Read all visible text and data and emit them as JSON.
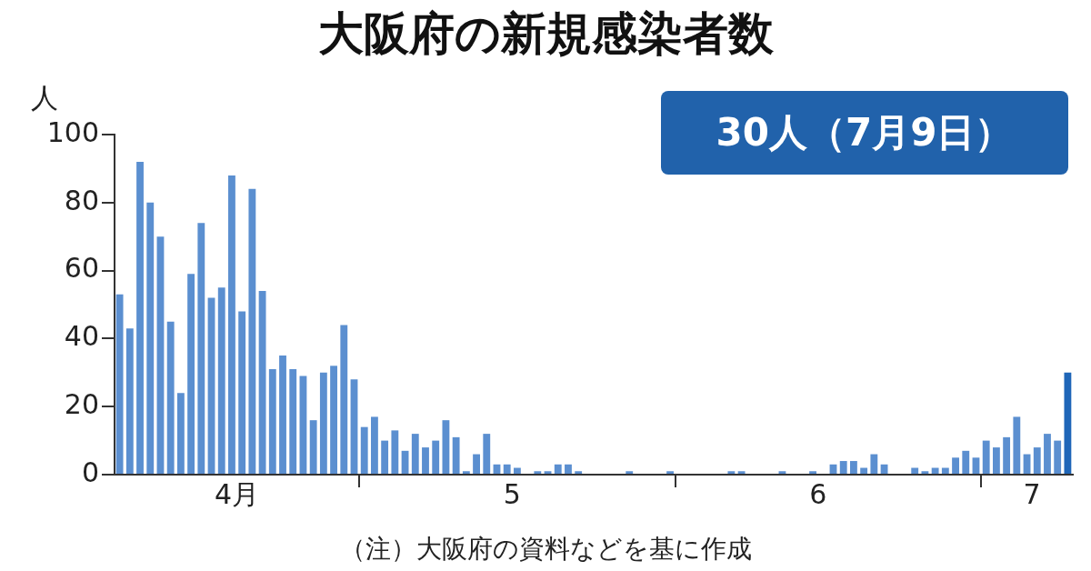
{
  "chart_data": {
    "type": "bar",
    "title": "大阪府の新規感染者数",
    "ylabel": "人",
    "annotations": [
      "30人（7月9日）",
      "（注）大阪府の資料などを基に作成"
    ],
    "x": [
      "--04-07",
      "--04-08",
      "--04-09",
      "--04-10",
      "--04-11",
      "--04-12",
      "--04-13",
      "--04-14",
      "--04-15",
      "--04-16",
      "--04-17",
      "--04-18",
      "--04-19",
      "--04-20",
      "--04-21",
      "--04-22",
      "--04-23",
      "--04-24",
      "--04-25",
      "--04-26",
      "--04-27",
      "--04-28",
      "--04-29",
      "--04-30",
      "--05-01",
      "--05-02",
      "--05-03",
      "--05-04",
      "--05-05",
      "--05-06",
      "--05-07",
      "--05-08",
      "--05-09",
      "--05-10",
      "--05-11",
      "--05-12",
      "--05-13",
      "--05-14",
      "--05-15",
      "--05-16",
      "--05-17",
      "--05-18",
      "--05-19",
      "--05-20",
      "--05-21",
      "--05-22",
      "--05-23",
      "--05-24",
      "--05-25",
      "--05-26",
      "--05-27",
      "--05-28",
      "--05-29",
      "--05-30",
      "--05-31",
      "--06-01",
      "--06-02",
      "--06-03",
      "--06-04",
      "--06-05",
      "--06-06",
      "--06-07",
      "--06-08",
      "--06-09",
      "--06-10",
      "--06-11",
      "--06-12",
      "--06-13",
      "--06-14",
      "--06-15",
      "--06-16",
      "--06-17",
      "--06-18",
      "--06-19",
      "--06-20",
      "--06-21",
      "--06-22",
      "--06-23",
      "--06-24",
      "--06-25",
      "--06-26",
      "--06-27",
      "--06-28",
      "--06-29",
      "--06-30",
      "--07-01",
      "--07-02",
      "--07-03",
      "--07-04",
      "--07-05",
      "--07-06",
      "--07-07",
      "--07-08",
      "--07-09"
    ],
    "values": [
      53,
      43,
      92,
      80,
      70,
      45,
      24,
      59,
      74,
      52,
      55,
      88,
      48,
      84,
      54,
      31,
      35,
      31,
      29,
      16,
      30,
      32,
      44,
      28,
      14,
      17,
      10,
      13,
      7,
      12,
      8,
      10,
      16,
      11,
      1,
      6,
      12,
      3,
      3,
      2,
      0,
      1,
      1,
      3,
      3,
      1,
      0,
      0,
      0,
      0,
      1,
      0,
      0,
      0,
      1,
      0,
      0,
      0,
      0,
      0,
      1,
      1,
      0,
      0,
      0,
      1,
      0,
      0,
      1,
      0,
      3,
      4,
      4,
      2,
      6,
      3,
      0,
      0,
      2,
      1,
      2,
      2,
      5,
      7,
      5,
      10,
      8,
      11,
      17,
      6,
      8,
      12,
      10,
      30
    ],
    "colors": [
      "#5b8fd0",
      "#5b8fd0",
      "#5b8fd0",
      "#5b8fd0",
      "#5b8fd0",
      "#5b8fd0",
      "#5b8fd0",
      "#5b8fd0",
      "#5b8fd0",
      "#5b8fd0",
      "#5b8fd0",
      "#5b8fd0",
      "#5b8fd0",
      "#5b8fd0",
      "#5b8fd0",
      "#5b8fd0",
      "#5b8fd0",
      "#5b8fd0",
      "#5b8fd0",
      "#5b8fd0",
      "#5b8fd0",
      "#5b8fd0",
      "#5b8fd0",
      "#5b8fd0",
      "#5b8fd0",
      "#5b8fd0",
      "#5b8fd0",
      "#5b8fd0",
      "#5b8fd0",
      "#5b8fd0",
      "#5b8fd0",
      "#5b8fd0",
      "#5b8fd0",
      "#5b8fd0",
      "#5b8fd0",
      "#5b8fd0",
      "#5b8fd0",
      "#5b8fd0",
      "#5b8fd0",
      "#5b8fd0",
      "#5b8fd0",
      "#5b8fd0",
      "#5b8fd0",
      "#5b8fd0",
      "#5b8fd0",
      "#5b8fd0",
      "#5b8fd0",
      "#5b8fd0",
      "#5b8fd0",
      "#5b8fd0",
      "#5b8fd0",
      "#5b8fd0",
      "#5b8fd0",
      "#5b8fd0",
      "#5b8fd0",
      "#5b8fd0",
      "#5b8fd0",
      "#5b8fd0",
      "#5b8fd0",
      "#5b8fd0",
      "#5b8fd0",
      "#5b8fd0",
      "#5b8fd0",
      "#5b8fd0",
      "#5b8fd0",
      "#5b8fd0",
      "#5b8fd0",
      "#5b8fd0",
      "#5b8fd0",
      "#5b8fd0",
      "#5b8fd0",
      "#5b8fd0",
      "#5b8fd0",
      "#5b8fd0",
      "#5b8fd0",
      "#5b8fd0",
      "#5b8fd0",
      "#5b8fd0",
      "#5b8fd0",
      "#5b8fd0",
      "#5b8fd0",
      "#5b8fd0",
      "#5b8fd0",
      "#5b8fd0",
      "#5b8fd0",
      "#5b8fd0",
      "#5b8fd0",
      "#5b8fd0",
      "#5b8fd0",
      "#5b8fd0",
      "#5b8fd0",
      "#5b8fd0",
      "#5b8fd0",
      "#1f66b8"
    ],
    "xlim": [
      "--04-07",
      "--07-10"
    ],
    "xticks": [
      {
        "value": "--04-19",
        "label": "4月"
      },
      {
        "value": "--05-01",
        "label": null
      },
      {
        "value": "--05-16",
        "label": "5"
      },
      {
        "value": "--06-01",
        "label": null
      },
      {
        "value": "--06-15",
        "label": "6"
      },
      {
        "value": "--07-01",
        "label": null
      },
      {
        "value": "--07-06",
        "label": "7"
      }
    ],
    "ylim": [
      0,
      100
    ],
    "yticks": [
      0,
      20,
      40,
      60,
      80,
      100
    ],
    "grid": false,
    "legend": false
  }
}
